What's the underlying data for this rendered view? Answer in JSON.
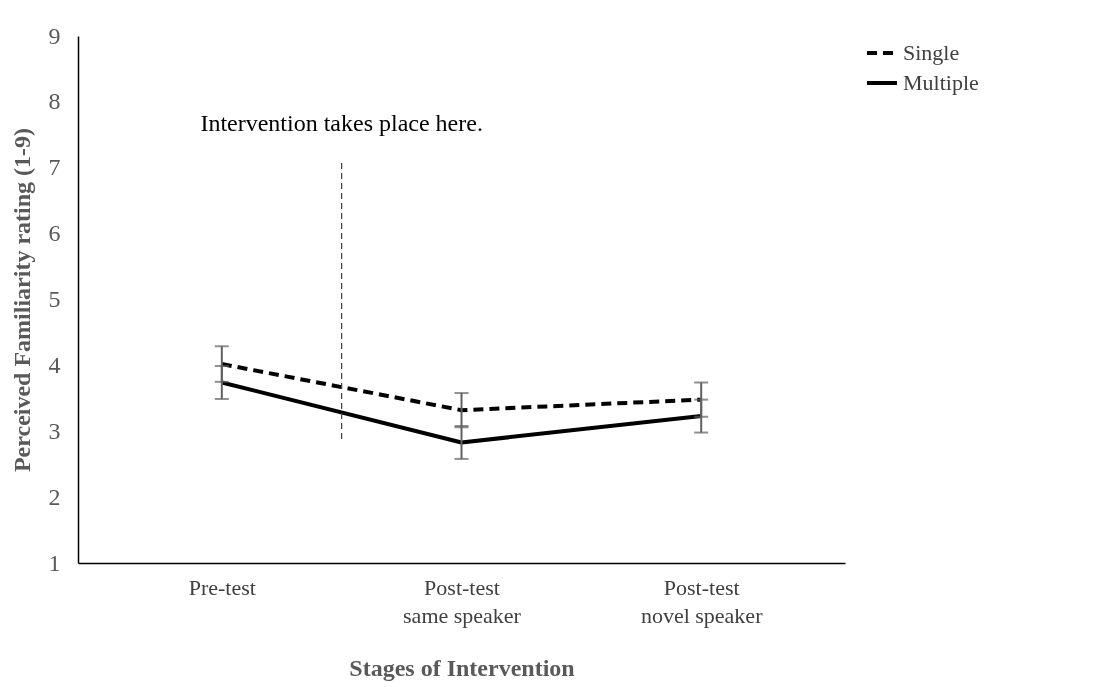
{
  "chart_data": {
    "type": "line",
    "xlabel": "Stages of Intervention",
    "ylabel": "Perceived Familiarity rating (1-9)",
    "categories": [
      "Pre-test",
      "Post-test\nsame speaker",
      "Post-test\nnovel speaker"
    ],
    "series": [
      {
        "name": "Single",
        "color": "#000000",
        "line_style": "dashed",
        "values": [
          4.02,
          3.32,
          3.48
        ],
        "errors": [
          0.27,
          0.26,
          0.26
        ]
      },
      {
        "name": "Multiple",
        "color": "#000000",
        "line_style": "solid",
        "values": [
          3.74,
          2.83,
          3.23
        ],
        "errors": [
          0.25,
          0.25,
          0.25
        ]
      }
    ],
    "ylim": [
      1,
      9
    ],
    "yticks": [
      1,
      2,
      3,
      4,
      5,
      6,
      7,
      8,
      9
    ],
    "annotations": [
      "Intervention takes place here."
    ],
    "grid": false,
    "legend": "right",
    "marker": "none"
  }
}
